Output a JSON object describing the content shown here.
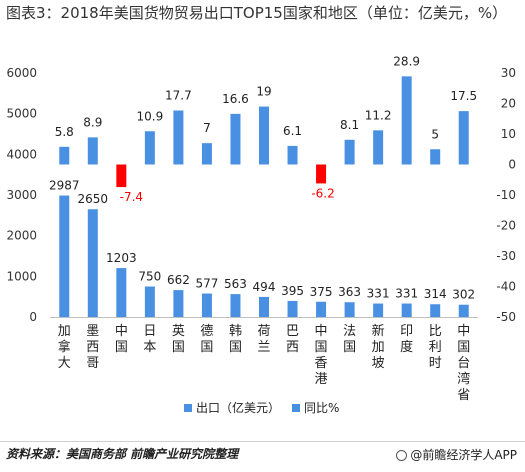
{
  "header": {
    "title": "图表3：2018年美国货物贸易出口TOP15国家和地区（单位：亿美元，%）"
  },
  "footer": {
    "source": "资料来源：美国商务部 前瞻产业研究院整理",
    "brand": "@前瞻经济学人APP"
  },
  "chart_data": {
    "type": "bar",
    "categories": [
      "加拿大",
      "墨西哥",
      "中国",
      "日本",
      "英国",
      "德国",
      "韩国",
      "荷兰",
      "巴西",
      "中国香港",
      "法国",
      "新加坡",
      "印度",
      "比利时",
      "中国台湾省"
    ],
    "series": [
      {
        "name": "出口（亿美元）",
        "axis": "left",
        "values": [
          2987,
          2650,
          1203,
          750,
          662,
          577,
          563,
          494,
          395,
          375,
          363,
          331,
          331,
          314,
          302
        ],
        "color": "#4a90e2"
      },
      {
        "name": "同比%",
        "axis": "right",
        "values": [
          5.8,
          8.9,
          -7.4,
          10.9,
          17.7,
          7,
          16.6,
          19,
          6.1,
          -6.2,
          8.1,
          11.2,
          28.9,
          5,
          17.5
        ],
        "color": "#4a90e2",
        "negative_color": "#ff0000"
      }
    ],
    "y_left": {
      "ylim": [
        0,
        6000
      ],
      "ticks": [
        "0",
        "1000",
        "2000",
        "3000",
        "4000",
        "5000",
        "6000"
      ]
    },
    "y_right": {
      "ylim": [
        -50,
        30
      ],
      "ticks": [
        "-50",
        "-40",
        "-30",
        "-20",
        "-10",
        "0",
        "10",
        "20",
        "30"
      ]
    },
    "legend": {
      "position": "bottom",
      "items": [
        "出口（亿美元）",
        "同比%"
      ]
    },
    "grid": false
  }
}
